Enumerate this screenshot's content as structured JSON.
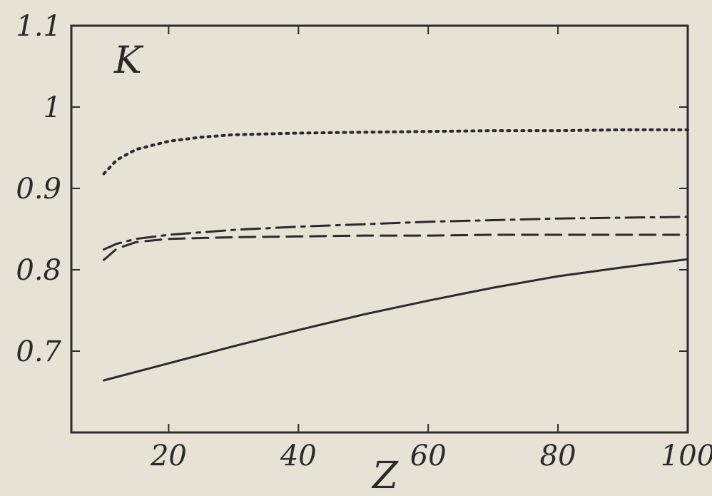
{
  "chart_data": {
    "type": "line",
    "title": "",
    "xlabel": "Z",
    "ylabel": "K",
    "xlim": [
      5,
      100
    ],
    "ylim": [
      0.6,
      1.1
    ],
    "xticks": [
      20,
      40,
      60,
      80,
      100
    ],
    "xtick_labels": [
      "20",
      "40",
      "60",
      "80",
      "100"
    ],
    "yticks": [
      0.7,
      0.8,
      0.9,
      1.0,
      1.1
    ],
    "ytick_labels": [
      "0.7",
      "0.8",
      "0.9",
      "1",
      "1.1"
    ],
    "grid": false,
    "legend": "none",
    "colors": {
      "line": "#2b2b2b",
      "background": "#e7e2d6"
    },
    "series": [
      {
        "style": "dotted",
        "x": [
          10,
          12,
          15,
          20,
          25,
          30,
          40,
          50,
          60,
          70,
          80,
          90,
          100
        ],
        "y": [
          0.918,
          0.935,
          0.948,
          0.958,
          0.963,
          0.966,
          0.968,
          0.969,
          0.97,
          0.971,
          0.971,
          0.972,
          0.972
        ]
      },
      {
        "style": "dash-dot",
        "x": [
          10,
          12,
          15,
          20,
          30,
          40,
          50,
          60,
          70,
          80,
          90,
          100
        ],
        "y": [
          0.825,
          0.832,
          0.838,
          0.843,
          0.849,
          0.853,
          0.856,
          0.859,
          0.861,
          0.863,
          0.864,
          0.865
        ]
      },
      {
        "style": "dashed",
        "x": [
          10,
          12,
          15,
          20,
          30,
          40,
          50,
          60,
          70,
          80,
          90,
          100
        ],
        "y": [
          0.812,
          0.826,
          0.834,
          0.838,
          0.84,
          0.841,
          0.842,
          0.842,
          0.843,
          0.843,
          0.843,
          0.843
        ]
      },
      {
        "style": "solid",
        "x": [
          10,
          20,
          30,
          40,
          50,
          60,
          70,
          80,
          90,
          100
        ],
        "y": [
          0.664,
          0.685,
          0.706,
          0.726,
          0.745,
          0.762,
          0.778,
          0.792,
          0.803,
          0.813
        ]
      }
    ]
  }
}
